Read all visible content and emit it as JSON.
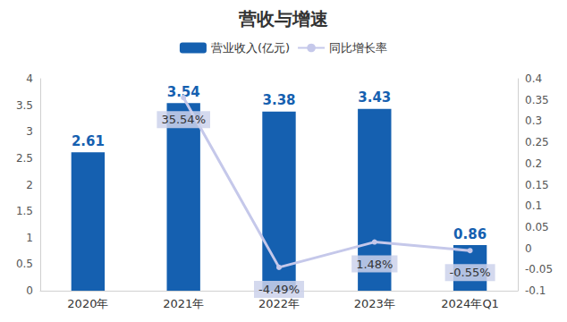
{
  "chart_data": {
    "type": "bar",
    "title": "营收与增速",
    "categories": [
      "2020年",
      "2021年",
      "2022年",
      "2023年",
      "2024年Q1"
    ],
    "series": [
      {
        "name": "营业收入(亿元)",
        "type": "bar",
        "color": "#1560b0",
        "values": [
          2.61,
          3.54,
          3.38,
          3.43,
          0.86
        ]
      },
      {
        "name": "同比增长率",
        "type": "line",
        "axis": "y2",
        "color": "#c5c8ea",
        "marker": "circle",
        "values": [
          null,
          0.3554,
          -0.0449,
          0.0148,
          -0.0055
        ],
        "value_labels": [
          null,
          "35.54%",
          "-4.49%",
          "1.48%",
          "-0.55%"
        ]
      }
    ],
    "ylim": [
      0,
      4
    ],
    "yticks": [
      0,
      0.5,
      1,
      1.5,
      2,
      2.5,
      3,
      3.5,
      4
    ],
    "y2lim": [
      -0.1,
      0.4
    ],
    "y2ticks": [
      -0.1,
      -0.05,
      0,
      0.05,
      0.1,
      0.15,
      0.2,
      0.25,
      0.3,
      0.35,
      0.4
    ],
    "data_labels": true,
    "legend": "top",
    "grid": false
  }
}
